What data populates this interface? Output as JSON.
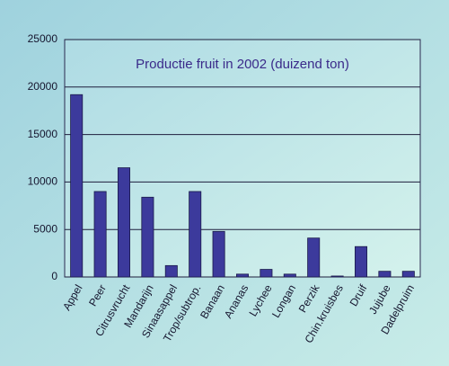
{
  "chart_data": {
    "type": "bar",
    "title": "Productie fruit in 2002 (duizend ton)",
    "categories": [
      "Appel",
      "Peer",
      "Citrusvrucht",
      "Mandarijn",
      "Sinaasappel",
      "Trop/subtrop.",
      "Banaan",
      "Ananas",
      "Lychee",
      "Longan",
      "Perzik",
      "Chin.kruisbes",
      "Druif",
      "Jujube",
      "Dadelpruim"
    ],
    "values": [
      19200,
      9000,
      11500,
      8400,
      1200,
      9000,
      4800,
      300,
      800,
      300,
      4100,
      100,
      3200,
      600,
      600
    ],
    "color": "#3c3a9c",
    "ylim": [
      0,
      25000
    ],
    "yticks": [
      0,
      5000,
      10000,
      15000,
      20000,
      25000
    ],
    "grid": true
  }
}
